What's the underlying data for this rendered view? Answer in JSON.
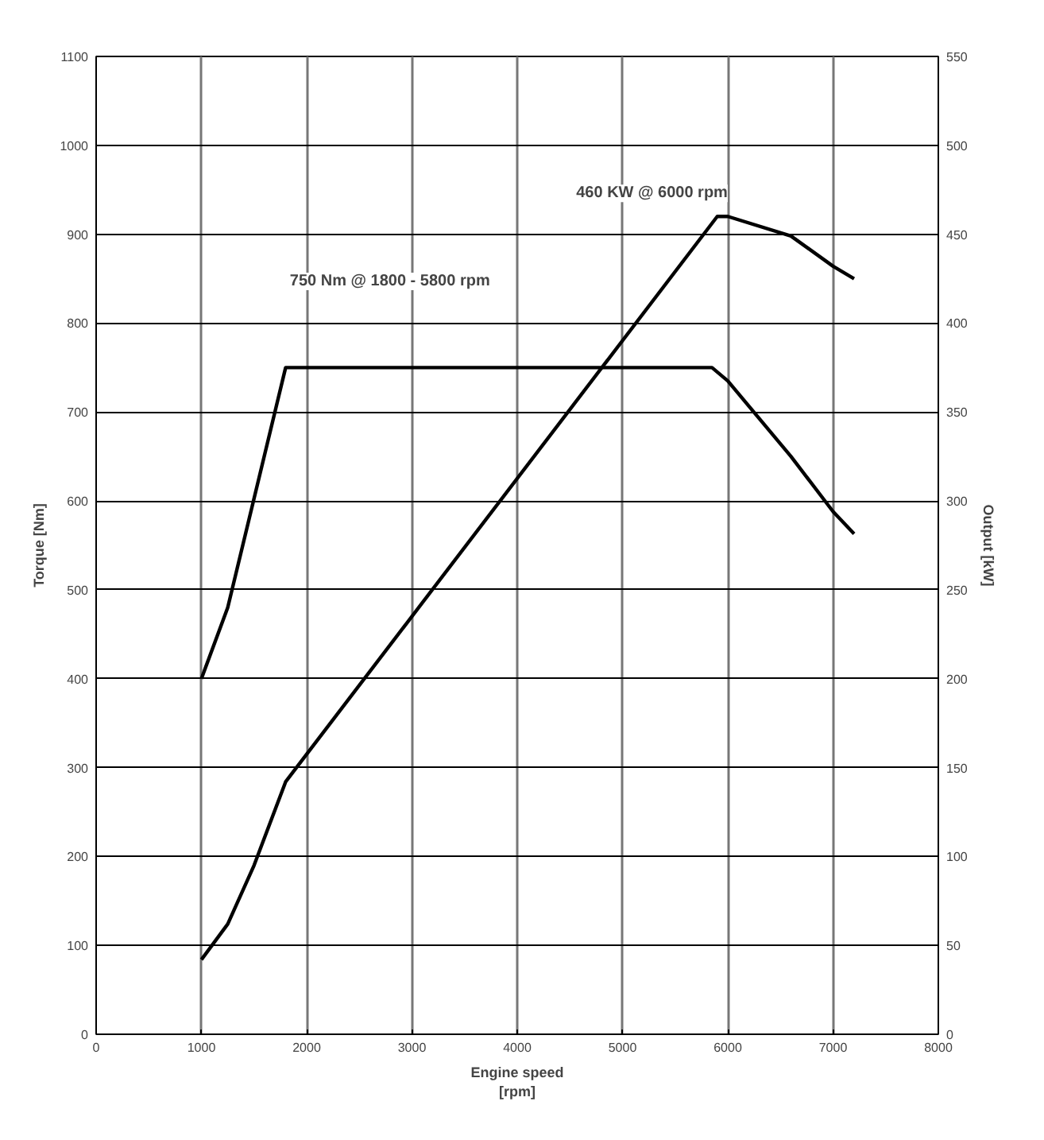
{
  "chart_data": {
    "type": "line",
    "xlabel": "Engine speed\n[rpm]",
    "ylabel": "Torque [Nm]",
    "y2label": "Output [kW]",
    "xlim": [
      0,
      8000
    ],
    "xticks": [
      0,
      1000,
      2000,
      3000,
      4000,
      5000,
      6000,
      7000,
      8000
    ],
    "ylim": [
      0,
      1100
    ],
    "yticks": [
      0,
      100,
      200,
      300,
      400,
      500,
      600,
      700,
      800,
      900,
      1000,
      1100
    ],
    "y2lim": [
      0,
      550
    ],
    "y2ticks": [
      0,
      50,
      100,
      150,
      200,
      250,
      300,
      350,
      400,
      450,
      500,
      550
    ],
    "grid": true,
    "line_style": "solid",
    "marker": "none",
    "annotations": [
      "750 Nm @ 1800 - 5800 rpm",
      "460 KW @ 6000 rpm"
    ],
    "series": [
      {
        "color": "#000000",
        "x": [
          1000,
          1250,
          1800,
          5850,
          6000,
          6600,
          7000,
          7200
        ],
        "values": [
          400,
          480,
          750,
          750,
          735,
          650,
          588,
          563
        ]
      },
      {
        "color": "#000000",
        "axis": "y2",
        "x": [
          1000,
          1250,
          1500,
          1800,
          5900,
          6000,
          6600,
          7000,
          7200
        ],
        "values": [
          42,
          62,
          95,
          142,
          460,
          460,
          449,
          432,
          425
        ]
      }
    ]
  }
}
